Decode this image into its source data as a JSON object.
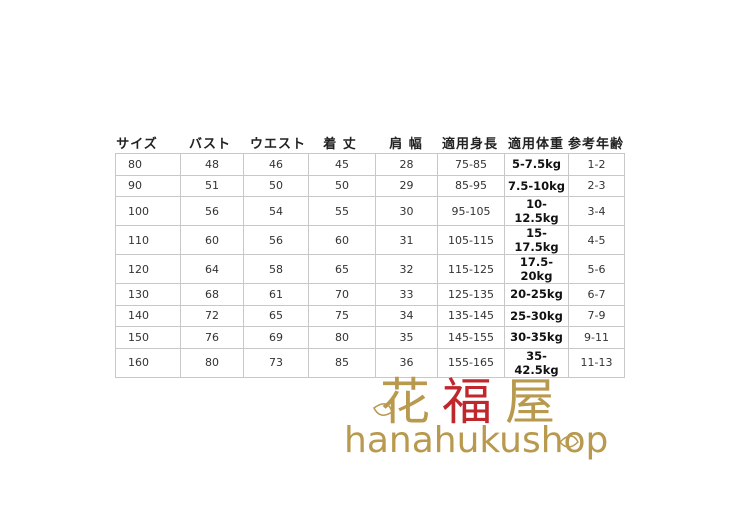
{
  "headers": [
    "サイズ",
    "バスト",
    "ウエスト",
    "着 丈",
    "肩 幅",
    "適用身長",
    "適用体重",
    "参考年齢"
  ],
  "rows": [
    [
      "80",
      "48",
      "46",
      "45",
      "28",
      "75-85",
      "5-7.5kg",
      "1-2"
    ],
    [
      "90",
      "51",
      "50",
      "50",
      "29",
      "85-95",
      "7.5-10kg",
      "2-3"
    ],
    [
      "100",
      "56",
      "54",
      "55",
      "30",
      "95-105",
      "10-12.5kg",
      "3-4"
    ],
    [
      "110",
      "60",
      "56",
      "60",
      "31",
      "105-115",
      "15-17.5kg",
      "4-5"
    ],
    [
      "120",
      "64",
      "58",
      "65",
      "32",
      "115-125",
      "17.5-20kg",
      "5-6"
    ],
    [
      "130",
      "68",
      "61",
      "70",
      "33",
      "125-135",
      "20-25kg",
      "6-7"
    ],
    [
      "140",
      "72",
      "65",
      "75",
      "34",
      "135-145",
      "25-30kg",
      "7-9"
    ],
    [
      "150",
      "76",
      "69",
      "80",
      "35",
      "145-155",
      "30-35kg",
      "9-11"
    ],
    [
      "160",
      "80",
      "73",
      "85",
      "36",
      "155-165",
      "35-42.5kg",
      "11-13"
    ]
  ],
  "logo": {
    "kanji": [
      "花",
      "福",
      "屋"
    ],
    "text": "hanahukushop",
    "colors": {
      "gold": "#b8994d",
      "red": "#c0272d"
    }
  }
}
